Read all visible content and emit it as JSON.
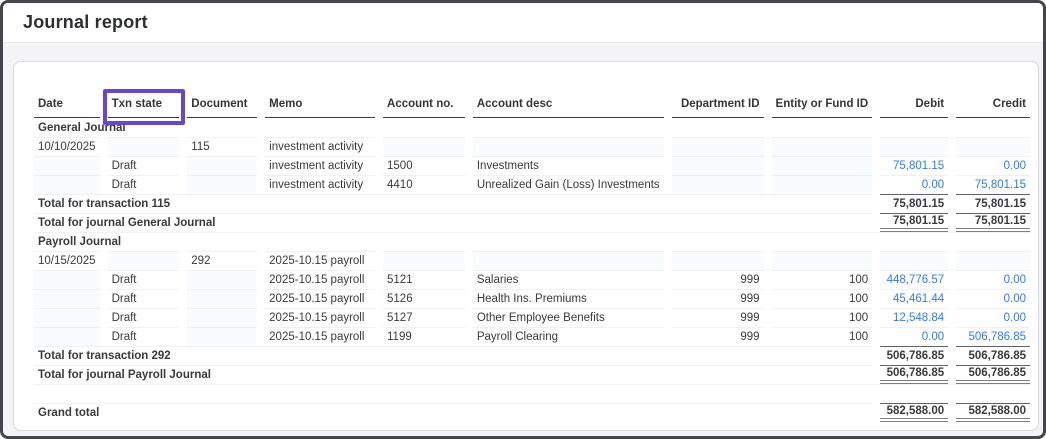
{
  "title": "Journal report",
  "colors": {
    "amount_link_blue": "#2e7de6",
    "highlight_purple": "#6a48c9"
  },
  "table": {
    "columns": [
      "Date",
      "Txn state",
      "Document",
      "Memo",
      "Account no.",
      "Account desc",
      "Department ID",
      "Entity or Fund ID",
      "Debit",
      "Credit"
    ],
    "rows": [
      {
        "type": "section",
        "label": "General Journal"
      },
      {
        "type": "txn",
        "date": "10/10/2025",
        "document": "115",
        "memo": "investment activity"
      },
      {
        "type": "line",
        "txn_state": "Draft",
        "memo": "investment activity",
        "account_no": "1500",
        "account_desc": "Investments",
        "department_id": "",
        "entity_or_fund_id": "",
        "debit": "75,801.15",
        "credit": "0.00"
      },
      {
        "type": "line",
        "txn_state": "Draft",
        "memo": "investment activity",
        "account_no": "4410",
        "account_desc": "Unrealized Gain (Loss) Investments",
        "department_id": "",
        "entity_or_fund_id": "",
        "debit": "0.00",
        "credit": "75,801.15"
      },
      {
        "type": "total",
        "label": "Total for transaction 115",
        "debit": "75,801.15",
        "credit": "75,801.15"
      },
      {
        "type": "journal-total",
        "label": "Total for journal General Journal",
        "debit": "75,801.15",
        "credit": "75,801.15"
      },
      {
        "type": "section",
        "label": "Payroll Journal"
      },
      {
        "type": "txn",
        "date": "10/15/2025",
        "document": "292",
        "memo": "2025-10.15 payroll"
      },
      {
        "type": "line",
        "txn_state": "Draft",
        "memo": "2025-10.15 payroll",
        "account_no": "5121",
        "account_desc": "Salaries",
        "department_id": "999",
        "entity_or_fund_id": "100",
        "debit": "448,776.57",
        "credit": "0.00"
      },
      {
        "type": "line",
        "txn_state": "Draft",
        "memo": "2025-10.15 payroll",
        "account_no": "5126",
        "account_desc": "Health Ins. Premiums",
        "department_id": "999",
        "entity_or_fund_id": "100",
        "debit": "45,461.44",
        "credit": "0.00"
      },
      {
        "type": "line",
        "txn_state": "Draft",
        "memo": "2025-10.15 payroll",
        "account_no": "5127",
        "account_desc": "Other Employee Benefits",
        "department_id": "999",
        "entity_or_fund_id": "100",
        "debit": "12,548.84",
        "credit": "0.00"
      },
      {
        "type": "line",
        "txn_state": "Draft",
        "memo": "2025-10.15 payroll",
        "account_no": "1199",
        "account_desc": "Payroll Clearing",
        "department_id": "999",
        "entity_or_fund_id": "100",
        "debit": "0.00",
        "credit": "506,786.85"
      },
      {
        "type": "total",
        "label": "Total for transaction 292",
        "debit": "506,786.85",
        "credit": "506,786.85"
      },
      {
        "type": "journal-total",
        "label": "Total for journal Payroll Journal",
        "debit": "506,786.85",
        "credit": "506,786.85"
      },
      {
        "type": "spacer"
      },
      {
        "type": "grand-total",
        "label": "Grand total",
        "debit": "582,588.00",
        "credit": "582,588.00"
      }
    ]
  },
  "annotation": {
    "highlighted_column": "Txn state"
  }
}
